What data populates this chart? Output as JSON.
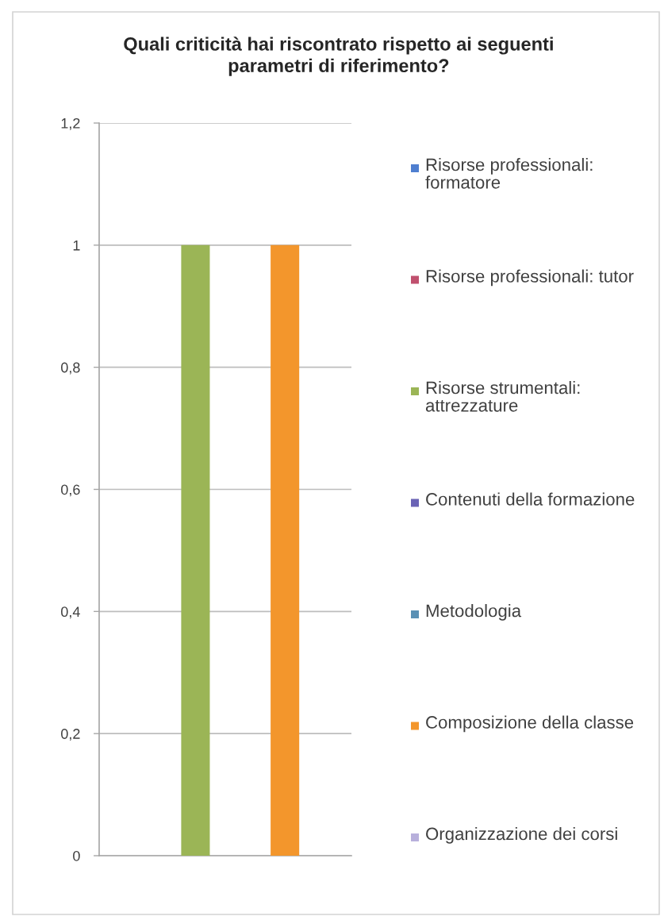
{
  "chart_data": {
    "type": "bar",
    "title": "Quali criticità hai riscontrato rispetto ai seguenti\nparametri di riferimento?",
    "categories": [
      null
    ],
    "series": [
      {
        "name": "Risorse professionali: formatore",
        "color": "#4f7fd0",
        "values": [
          0
        ]
      },
      {
        "name": "Risorse professionali: tutor",
        "color": "#c0506e",
        "values": [
          0
        ]
      },
      {
        "name": "Risorse strumentali: attrezzature",
        "color": "#9bb556",
        "values": [
          1
        ]
      },
      {
        "name": "Contenuti della formazione",
        "color": "#6a63b5",
        "values": [
          0
        ]
      },
      {
        "name": "Metodologia",
        "color": "#5a90b4",
        "values": [
          0
        ]
      },
      {
        "name": "Composizione della classe",
        "color": "#f3962c",
        "values": [
          1
        ]
      },
      {
        "name": "Organizzazione dei corsi",
        "color": "#b8b0dc",
        "values": [
          0
        ]
      }
    ],
    "ylim": [
      0,
      1.2
    ],
    "yticks": [
      0,
      {
        "value": 0.2,
        "label": "0,2"
      },
      {
        "value": 0.4,
        "label": "0,4"
      },
      {
        "value": 0.6,
        "label": "0,6"
      },
      {
        "value": 0.8,
        "label": "0,8"
      },
      1,
      {
        "value": 1.2,
        "label": "1,2"
      }
    ],
    "grid": "y",
    "legend": "right",
    "tick_labels": "y"
  }
}
